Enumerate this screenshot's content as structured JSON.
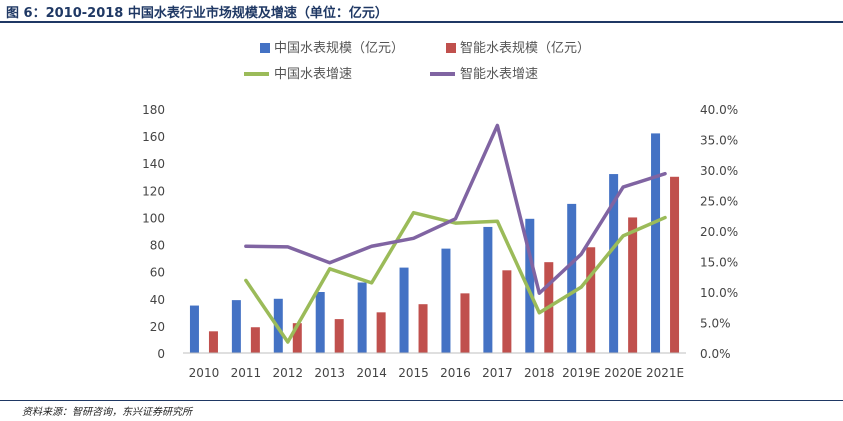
{
  "header": {
    "title": "图 6：2010-2018 中国水表行业市场规模及增速（单位：亿元）"
  },
  "footer": {
    "source": "资料来源：智研咨询，东兴证券研究所"
  },
  "chart_data": {
    "type": "bar",
    "categories": [
      "2010",
      "2011",
      "2012",
      "2013",
      "2014",
      "2015",
      "2016",
      "2017",
      "2018",
      "2019E",
      "2020E",
      "2021E"
    ],
    "series": [
      {
        "name": "中国水表规模（亿元）",
        "kind": "bar",
        "axis": "left",
        "color": "#4472c4",
        "values": [
          35,
          39,
          40,
          45,
          52,
          63,
          77,
          93,
          99,
          110,
          132,
          162
        ]
      },
      {
        "name": "智能水表规模（亿元）",
        "kind": "bar",
        "axis": "left",
        "color": "#c0504d",
        "values": [
          16,
          19,
          22,
          25,
          30,
          36,
          44,
          61,
          67,
          78,
          100,
          130
        ]
      },
      {
        "name": "中国水表增速",
        "kind": "line",
        "axis": "right",
        "color": "#9bbb59",
        "values": [
          null,
          11.9,
          1.8,
          13.8,
          11.5,
          23.0,
          21.3,
          21.6,
          6.6,
          10.8,
          19.2,
          22.2
        ]
      },
      {
        "name": "智能水表增速",
        "kind": "line",
        "axis": "right",
        "color": "#8064a2",
        "values": [
          null,
          17.5,
          17.4,
          14.8,
          17.5,
          18.8,
          22.0,
          37.3,
          9.8,
          16.2,
          27.2,
          29.4
        ]
      }
    ],
    "y_left": {
      "ylim": [
        0,
        180
      ],
      "ticks": [
        "0",
        "20",
        "40",
        "60",
        "80",
        "100",
        "120",
        "140",
        "160",
        "180"
      ]
    },
    "y_right": {
      "ylim": [
        0,
        40
      ],
      "ticks": [
        "0.0%",
        "5.0%",
        "10.0%",
        "15.0%",
        "20.0%",
        "25.0%",
        "30.0%",
        "35.0%",
        "40.0%"
      ]
    },
    "legend_position": "top",
    "grid": false
  }
}
